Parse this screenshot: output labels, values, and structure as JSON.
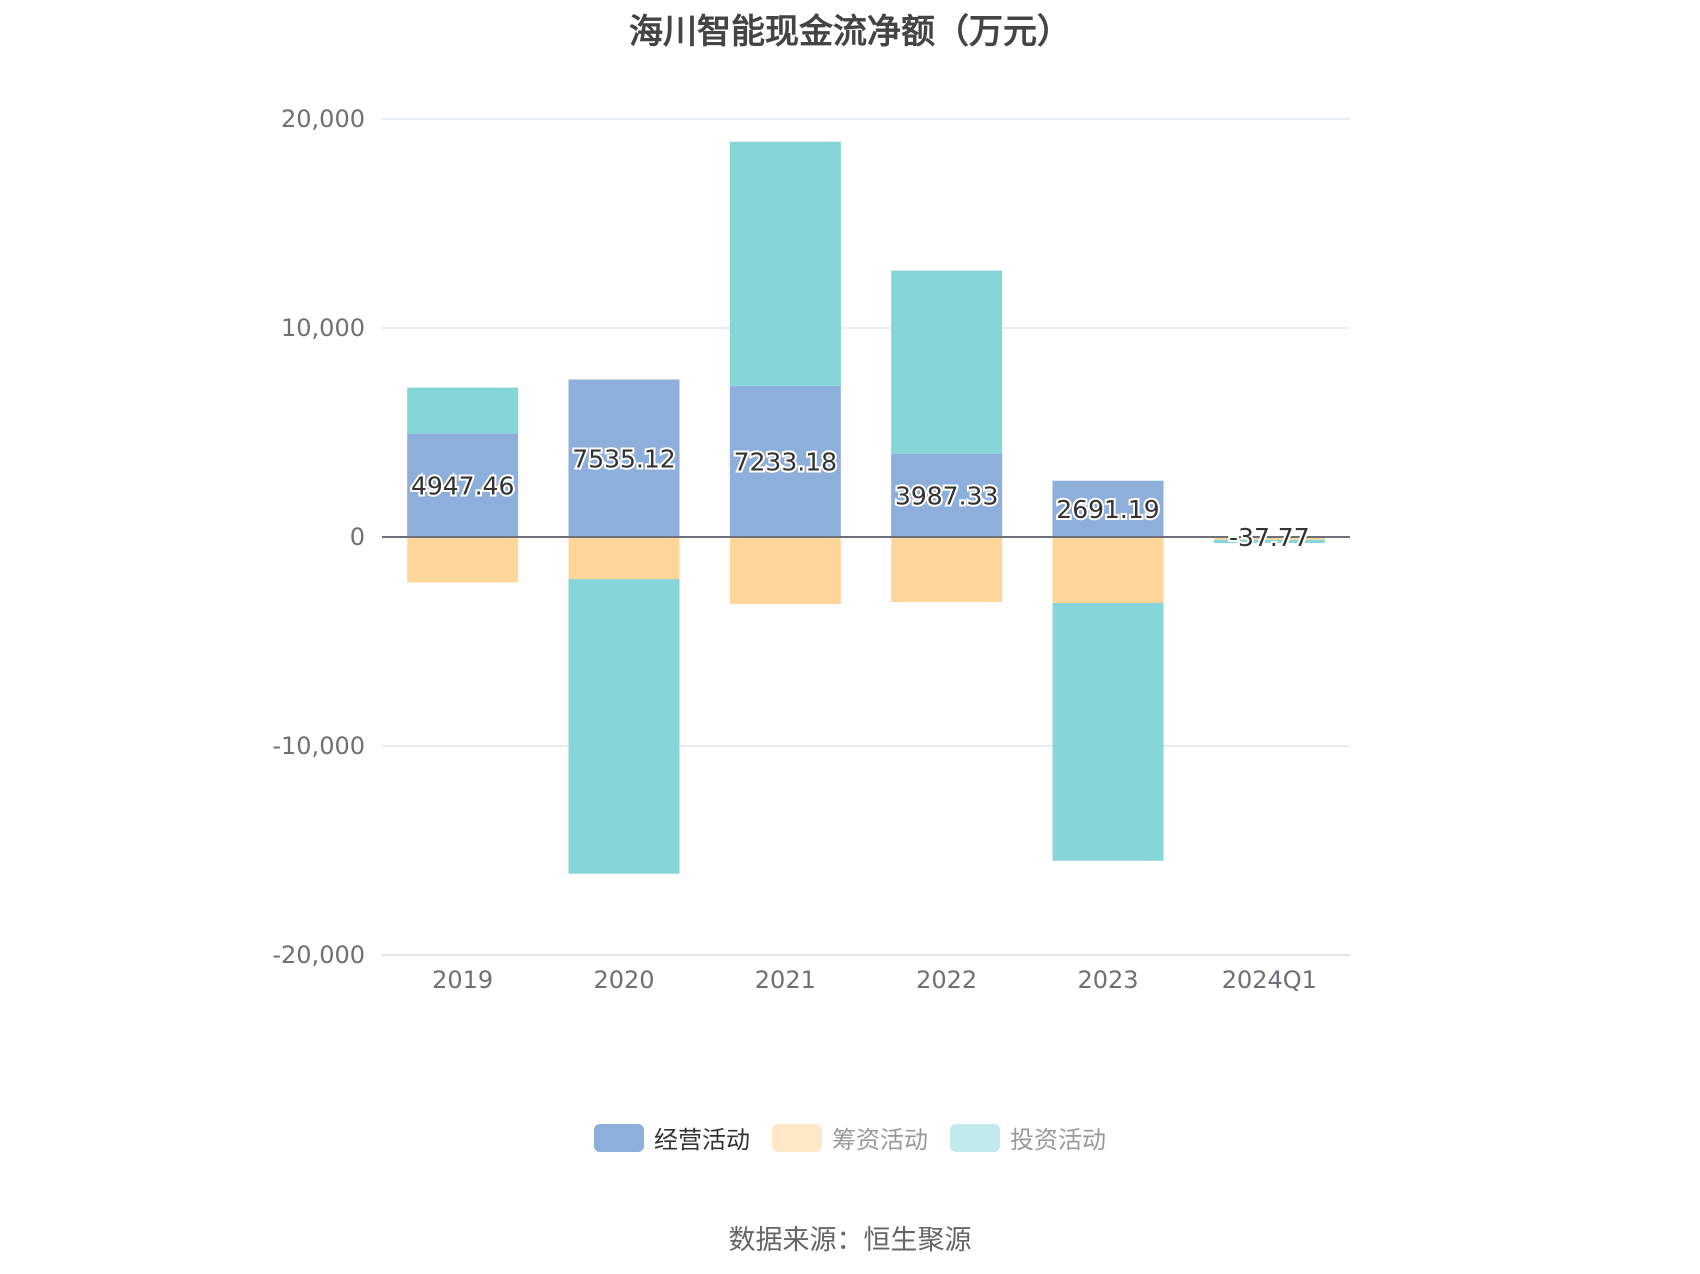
{
  "chart_data": {
    "type": "bar",
    "stacked": true,
    "title": "海川智能现金流净额（万元）",
    "categories": [
      "2019",
      "2020",
      "2021",
      "2022",
      "2023",
      "2024Q1"
    ],
    "series": [
      {
        "name": "经营活动",
        "color": "#8eaedb",
        "values": [
          4947.46,
          7535.12,
          7233.18,
          3987.33,
          2691.19,
          -37.77
        ],
        "labels": [
          "4947.46",
          "7535.12",
          "7233.18",
          "3987.33",
          "2691.19",
          "-37.77"
        ]
      },
      {
        "name": "筹资活动",
        "color": "#ffd699",
        "legend_color": "#ffe8c7",
        "values": [
          -2180,
          -2020,
          -3210,
          -3110,
          -3160,
          -100
        ]
      },
      {
        "name": "投资活动",
        "color": "#86d5d9",
        "legend_color": "#c2e9eb",
        "values": [
          2200,
          -14090,
          11680,
          8760,
          -12330,
          -150
        ]
      }
    ],
    "ylim": [
      -20000,
      20000
    ],
    "yticks": [
      20000,
      10000,
      0,
      -10000,
      -20000
    ],
    "ytick_labels": [
      "20,000",
      "10,000",
      "0",
      "-10,000",
      "-20,000"
    ],
    "grid": true,
    "legend_position": "bottom"
  },
  "source": "数据来源：恒生聚源"
}
